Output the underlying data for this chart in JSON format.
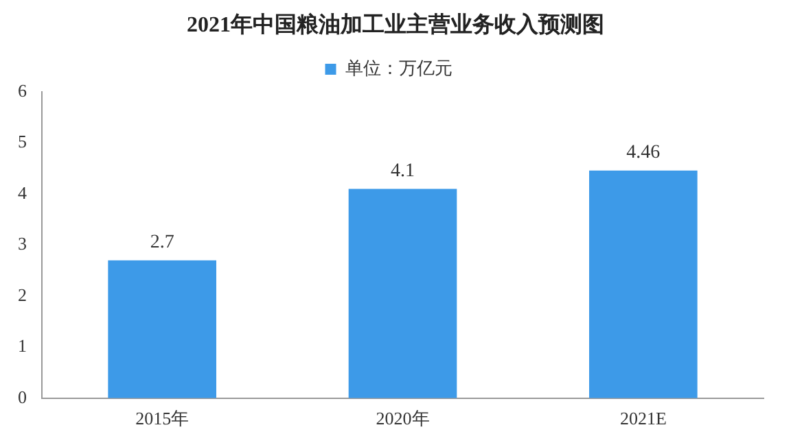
{
  "chart_data": {
    "type": "bar",
    "title": "2021年中国粮油加工业主营业务收入预测图",
    "categories": [
      "2015年",
      "2020年",
      "2021E"
    ],
    "series": [
      {
        "name": "单位：万亿元",
        "color": "#3d9ae8",
        "values": [
          2.7,
          4.1,
          4.46
        ]
      }
    ],
    "ylim": [
      0,
      6
    ],
    "yticks": [
      0,
      1,
      2,
      3,
      4,
      5,
      6
    ],
    "grid": false,
    "legend": "top",
    "data_labels": true
  }
}
